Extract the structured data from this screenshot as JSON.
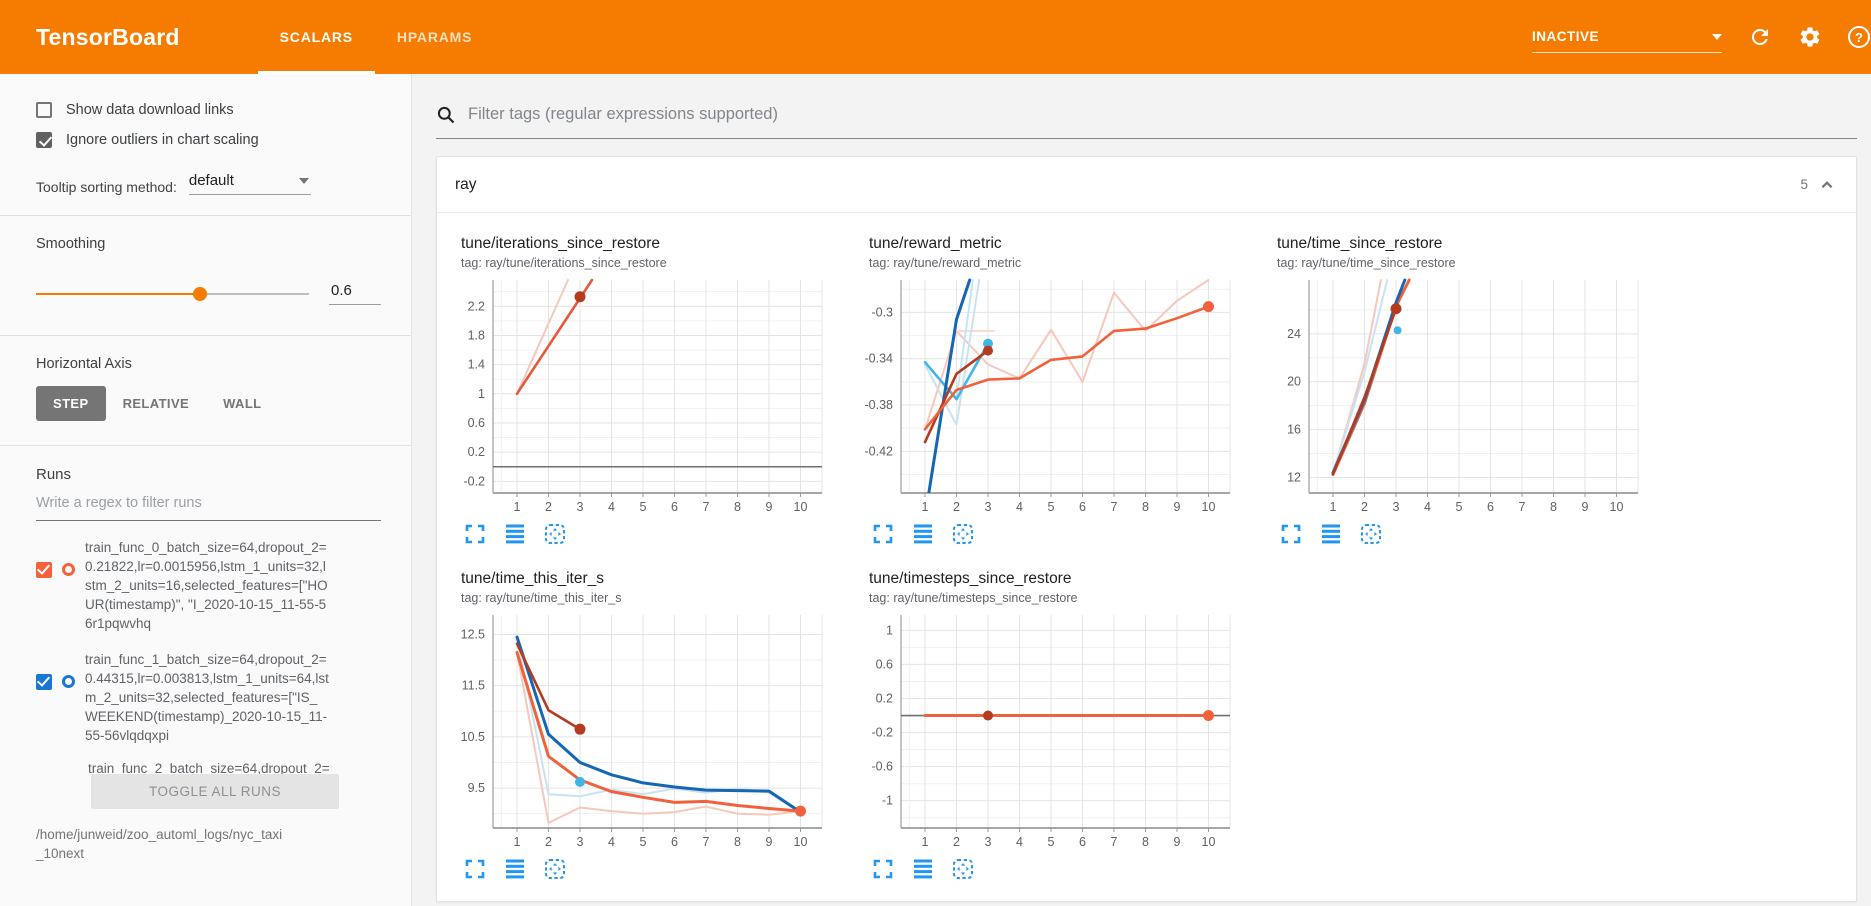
{
  "header": {
    "logo": "TensorBoard",
    "tabs": [
      {
        "label": "SCALARS",
        "active": true
      },
      {
        "label": "HPARAMS",
        "active": false
      }
    ],
    "status_label": "INACTIVE",
    "icons": [
      "caret-down-icon",
      "refresh-icon",
      "settings-icon",
      "help-icon"
    ]
  },
  "colors": {
    "header_bg": "#f57c00",
    "accent": "#f57c00",
    "run_orange": "#f4623a",
    "run_blue": "#1976d2",
    "chart_icon_blue": "#2196f3",
    "line_orange": "#f0613c",
    "line_dark_red": "#b53b20",
    "line_navy": "#1567b3",
    "line_cyan": "#41b6e6",
    "zero_line_gray": "#6f6f6f"
  },
  "sidebar": {
    "checkboxes": [
      {
        "label": "Show data download links",
        "checked": false
      },
      {
        "label": "Ignore outliers in chart scaling",
        "checked": true
      }
    ],
    "tooltip_sort": {
      "label": "Tooltip sorting method:",
      "value": "default"
    },
    "smoothing": {
      "label": "Smoothing",
      "value": "0.6",
      "percent": 60
    },
    "horizontal_axis": {
      "label": "Horizontal Axis",
      "options": [
        {
          "label": "STEP",
          "active": true
        },
        {
          "label": "RELATIVE",
          "active": false
        },
        {
          "label": "WALL",
          "active": false
        }
      ]
    },
    "runs": {
      "label": "Runs",
      "filter_placeholder": "Write a regex to filter runs",
      "items": [
        {
          "text": "train_func_0_batch_size=64,dropout_2=0.21822,lr=0.0015956,lstm_1_units=32,lstm_2_units=16,selected_features=[\"HOUR(timestamp)\", \"I_2020-10-15_11-55-56r1pqwvhq",
          "checked": true,
          "color": "#f4623a"
        },
        {
          "text": "train_func_1_batch_size=64,dropout_2=0.44315,lr=0.003813,lstm_1_units=64,lstm_2_units=32,selected_features=[\"IS_WEEKEND(timestamp)_2020-10-15_11-55-56vlqdqxpi",
          "checked": true,
          "color": "#1976d2"
        },
        {
          "text": "train_func_2_batch_size=64,dropout_2=",
          "clipped": true
        }
      ],
      "toggle_label": "TOGGLE ALL RUNS",
      "log_path": "/home/junweid/zoo_automl_logs/nyc_taxi_10next"
    }
  },
  "main": {
    "filter": {
      "placeholder": "Filter tags (regular expressions supported)"
    },
    "section": {
      "title": "ray",
      "count": "5"
    },
    "chart_action_icons": [
      "expand-icon",
      "runs-selector-icon",
      "fit-domain-icon"
    ]
  },
  "chart_data": [
    {
      "type": "line",
      "title": "tune/iterations_since_restore",
      "tag": "tag: ray/tune/iterations_since_restore",
      "ylim": [
        -0.36,
        2.56
      ],
      "yticks": [
        -0.2,
        0.2,
        0.6,
        1,
        1.4,
        1.8,
        2.2
      ],
      "xticks": [
        1,
        2,
        3,
        4,
        5,
        6,
        7,
        8,
        9,
        10
      ],
      "zero_lines": [
        {
          "y": 0,
          "color": "#6f6f6f"
        }
      ],
      "series": [
        {
          "color": "#f6c8bb",
          "w": 2,
          "pts": [
            [
              1,
              1
            ],
            [
              2.62,
              2.56
            ]
          ]
        },
        {
          "color": "#e8583a",
          "w": 2.6,
          "pts": [
            [
              1,
              1
            ],
            [
              3.38,
              2.56
            ]
          ]
        }
      ],
      "dots": [
        {
          "x": 3,
          "y": 2.33,
          "color": "#b53b20",
          "r": 5.5
        }
      ]
    },
    {
      "type": "line",
      "title": "tune/reward_metric",
      "tag": "tag: ray/tune/reward_metric",
      "ylim": [
        -0.456,
        -0.272
      ],
      "yticks": [
        -0.3,
        -0.34,
        -0.38,
        -0.42
      ],
      "xticks": [
        1,
        2,
        3,
        4,
        5,
        6,
        7,
        8,
        9,
        10
      ],
      "zero_lines": [],
      "series": [
        {
          "color": "#f6c8bb",
          "w": 2,
          "pts": [
            [
              1,
              -0.401
            ],
            [
              2,
              -0.316
            ],
            [
              3,
              -0.345
            ],
            [
              4,
              -0.357
            ],
            [
              5,
              -0.315
            ],
            [
              6,
              -0.36
            ],
            [
              7,
              -0.283
            ],
            [
              8,
              -0.316
            ],
            [
              9,
              -0.29
            ],
            [
              10,
              -0.272
            ]
          ]
        },
        {
          "color": "#f9d9d0",
          "w": 2,
          "pts": [
            [
              2,
              -0.316
            ],
            [
              3.2,
              -0.316
            ]
          ]
        },
        {
          "color": "#c9e2f3",
          "w": 2,
          "pts": [
            [
              1,
              -0.345
            ],
            [
              2,
              -0.397
            ],
            [
              2.72,
              -0.272
            ]
          ]
        },
        {
          "color": "#bfe7f8",
          "w": 2,
          "pts": [
            [
              1,
              -0.343
            ],
            [
              2,
              -0.374
            ],
            [
              2.52,
              -0.272
            ]
          ]
        },
        {
          "color": "#41b6e6",
          "w": 2.6,
          "pts": [
            [
              1,
              -0.343
            ],
            [
              2,
              -0.375
            ],
            [
              3,
              -0.327
            ]
          ]
        },
        {
          "color": "#1567b3",
          "w": 3,
          "pts": [
            [
              1.12,
              -0.456
            ],
            [
              2,
              -0.306
            ],
            [
              2.42,
              -0.272
            ]
          ]
        },
        {
          "color": "#b53b20",
          "w": 2.6,
          "pts": [
            [
              1,
              -0.412
            ],
            [
              2,
              -0.353
            ],
            [
              3,
              -0.333
            ]
          ]
        },
        {
          "color": "#f0613c",
          "w": 2.6,
          "pts": [
            [
              1,
              -0.401
            ],
            [
              2,
              -0.367
            ],
            [
              3,
              -0.358
            ],
            [
              4,
              -0.357
            ],
            [
              5,
              -0.341
            ],
            [
              6,
              -0.338
            ],
            [
              7,
              -0.316
            ],
            [
              8,
              -0.314
            ],
            [
              9,
              -0.305
            ],
            [
              10,
              -0.295
            ]
          ]
        }
      ],
      "dots": [
        {
          "x": 3,
          "y": -0.327,
          "color": "#41b6e6",
          "r": 5
        },
        {
          "x": 3,
          "y": -0.333,
          "color": "#b53b20",
          "r": 5
        },
        {
          "x": 10,
          "y": -0.295,
          "color": "#f0613c",
          "r": 5.5
        }
      ]
    },
    {
      "type": "line",
      "title": "tune/time_since_restore",
      "tag": "tag: ray/tune/time_since_restore",
      "ylim": [
        10.7,
        28.5
      ],
      "yticks": [
        12,
        16,
        20,
        24
      ],
      "xticks": [
        1,
        2,
        3,
        4,
        5,
        6,
        7,
        8,
        9,
        10
      ],
      "zero_lines": [],
      "series": [
        {
          "color": "#f6c8bb",
          "w": 2,
          "pts": [
            [
              1,
              12.3
            ],
            [
              2,
              21.5
            ],
            [
              2.52,
              28.5
            ]
          ]
        },
        {
          "color": "#c9e2f3",
          "w": 2,
          "pts": [
            [
              1,
              12.4
            ],
            [
              2,
              20.8
            ],
            [
              2.72,
              28.5
            ]
          ]
        },
        {
          "color": "#f0613c",
          "w": 3,
          "pts": [
            [
              1,
              12.25
            ],
            [
              2,
              18.2
            ],
            [
              3,
              26.3
            ],
            [
              3.42,
              28.5
            ]
          ]
        },
        {
          "color": "#1567b3",
          "w": 3,
          "pts": [
            [
              1,
              12.4
            ],
            [
              2,
              18.5
            ],
            [
              3,
              26.6
            ],
            [
              3.28,
              28.5
            ]
          ]
        },
        {
          "color": "#b53b20",
          "w": 2.6,
          "pts": [
            [
              1,
              12.3
            ],
            [
              2,
              18.7
            ],
            [
              3,
              26.1
            ]
          ]
        }
      ],
      "dots": [
        {
          "x": 3,
          "y": 26.1,
          "color": "#b53b20",
          "r": 5.5
        },
        {
          "x": 3.05,
          "y": 24.3,
          "color": "#41b6e6",
          "r": 4
        }
      ]
    },
    {
      "type": "line",
      "title": "tune/time_this_iter_s",
      "tag": "tag: ray/tune/time_this_iter_s",
      "ylim": [
        8.72,
        12.88
      ],
      "yticks": [
        9.5,
        10.5,
        11.5,
        12.5
      ],
      "xticks": [
        1,
        2,
        3,
        4,
        5,
        6,
        7,
        8,
        9,
        10
      ],
      "zero_lines": [],
      "series": [
        {
          "color": "#c9e2f3",
          "w": 2,
          "pts": [
            [
              1,
              12.45
            ],
            [
              2,
              9.38
            ],
            [
              3,
              9.34
            ],
            [
              4,
              9.47
            ],
            [
              5,
              9.38
            ],
            [
              6,
              9.49
            ],
            [
              7,
              9.41
            ],
            [
              8,
              9.49
            ],
            [
              9,
              9.41
            ],
            [
              10,
              9.02
            ]
          ]
        },
        {
          "color": "#f6c8bb",
          "w": 2,
          "pts": [
            [
              1,
              12.15
            ],
            [
              2,
              8.82
            ],
            [
              3,
              9.12
            ],
            [
              4,
              9.05
            ],
            [
              5,
              9.0
            ],
            [
              6,
              9.03
            ],
            [
              7,
              9.14
            ],
            [
              8,
              9.0
            ],
            [
              9,
              8.98
            ],
            [
              10,
              9.05
            ]
          ]
        },
        {
          "color": "#1567b3",
          "w": 3,
          "pts": [
            [
              1,
              12.45
            ],
            [
              2,
              10.55
            ],
            [
              3,
              10.0
            ],
            [
              4,
              9.76
            ],
            [
              5,
              9.6
            ],
            [
              6,
              9.52
            ],
            [
              7,
              9.46
            ],
            [
              8,
              9.45
            ],
            [
              9,
              9.44
            ],
            [
              10,
              9.03
            ]
          ]
        },
        {
          "color": "#f0613c",
          "w": 3,
          "pts": [
            [
              1,
              12.15
            ],
            [
              2,
              10.12
            ],
            [
              3,
              9.66
            ],
            [
              4,
              9.43
            ],
            [
              5,
              9.32
            ],
            [
              6,
              9.22
            ],
            [
              7,
              9.24
            ],
            [
              8,
              9.16
            ],
            [
              9,
              9.1
            ],
            [
              10,
              9.05
            ]
          ]
        },
        {
          "color": "#b53b20",
          "w": 2.6,
          "pts": [
            [
              1,
              12.32
            ],
            [
              2,
              11.02
            ],
            [
              3,
              10.65
            ]
          ]
        }
      ],
      "dots": [
        {
          "x": 3,
          "y": 9.62,
          "color": "#41b6e6",
          "r": 5
        },
        {
          "x": 3,
          "y": 10.65,
          "color": "#b53b20",
          "r": 5.5
        },
        {
          "x": 10,
          "y": 9.05,
          "color": "#f0613c",
          "r": 5.5
        }
      ]
    },
    {
      "type": "line",
      "title": "tune/timesteps_since_restore",
      "tag": "tag: ray/tune/timesteps_since_restore",
      "ylim": [
        -1.32,
        1.18
      ],
      "yticks": [
        1,
        0.6,
        0.2,
        -0.2,
        -0.6,
        -1
      ],
      "xticks": [
        1,
        2,
        3,
        4,
        5,
        6,
        7,
        8,
        9,
        10
      ],
      "zero_lines": [
        {
          "y": 0,
          "color": "#6f6f6f"
        }
      ],
      "series": [
        {
          "color": "#f0613c",
          "w": 3,
          "pts": [
            [
              1,
              0
            ],
            [
              10,
              0
            ]
          ]
        }
      ],
      "dots": [
        {
          "x": 3,
          "y": 0,
          "color": "#b53b20",
          "r": 5
        },
        {
          "x": 10,
          "y": 0,
          "color": "#f0613c",
          "r": 5.5
        }
      ]
    }
  ]
}
